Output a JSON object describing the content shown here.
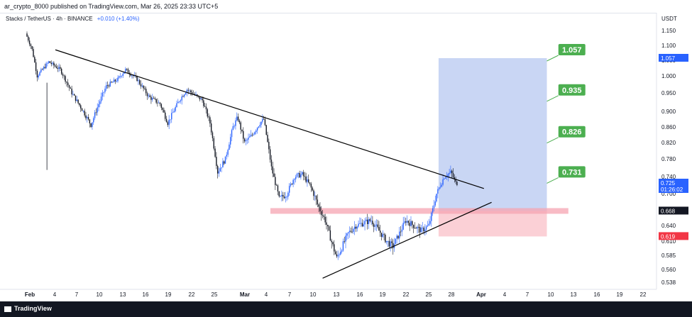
{
  "header": {
    "published_by": "ar_crypto_8000 published on TradingView.com, Mar 26, 2025 23:33 UTC+5"
  },
  "legend": {
    "symbol": "Stacks / TetherUS · 4h · BINANCE",
    "change": "+0.010 (+1.40%)"
  },
  "footer": {
    "brand": "TradingView"
  },
  "colors": {
    "up": "#2962ff",
    "down": "#131722",
    "target_box": "#c9d6f4",
    "stop_box": "#fbd0d6",
    "entry_line": "#f6a4b1",
    "label_green": "#4caf50",
    "price_blue": "#2962ff",
    "price_red": "#f23645"
  },
  "chart_data": {
    "type": "candlestick",
    "currency_label": "USDT",
    "y_ticks": [
      "1.150",
      "1.100",
      "1.050",
      "1.000",
      "0.950",
      "0.900",
      "0.860",
      "0.820",
      "0.780",
      "0.740",
      "0.700",
      "0.670",
      "0.640",
      "0.610",
      "0.585",
      "0.560",
      "0.538"
    ],
    "x_ticks": [
      "Feb",
      "4",
      "7",
      "10",
      "13",
      "16",
      "19",
      "22",
      "25",
      "Mar",
      "4",
      "7",
      "10",
      "13",
      "16",
      "19",
      "22",
      "25",
      "28",
      "Apr",
      "4",
      "7",
      "10",
      "13",
      "16",
      "19",
      "22"
    ],
    "price_labels": [
      {
        "value": "1.057",
        "color": "#2962ff"
      },
      {
        "value": "0.725",
        "sub": "01:26:02",
        "color": "#2962ff"
      },
      {
        "value": "0.668",
        "color": "#131722"
      },
      {
        "value": "0.619",
        "color": "#f23645"
      }
    ],
    "targets": [
      "1.057",
      "0.935",
      "0.826",
      "0.731"
    ],
    "entry": 0.668,
    "stop": 0.619
  }
}
